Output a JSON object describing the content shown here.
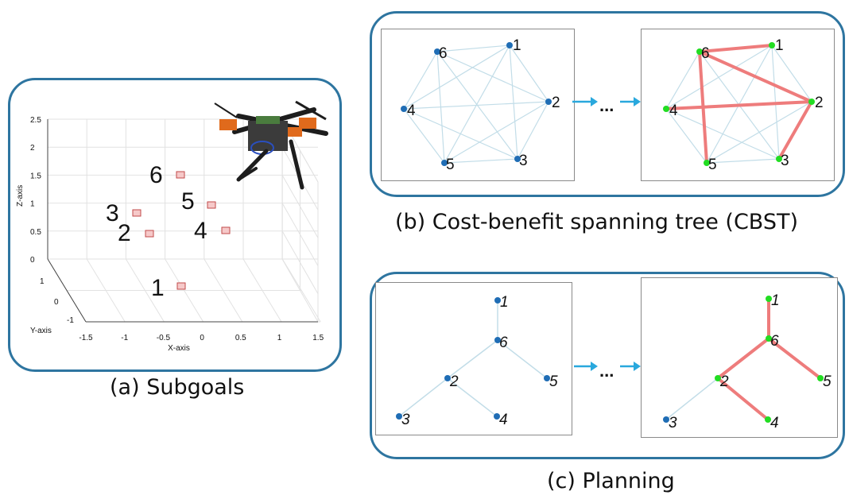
{
  "panel_a": {
    "caption": "(a) Subgoals",
    "axes": {
      "x_label": "X-axis",
      "y_label": "Y-axis",
      "z_label": "Z-axis",
      "x_ticks": [
        "-1.5",
        "-1",
        "-0.5",
        "0",
        "0.5",
        "1",
        "1.5"
      ],
      "y_ticks": [
        "1",
        "0",
        "-1"
      ],
      "z_ticks": [
        "0",
        "0.5",
        "1",
        "1.5",
        "2",
        "2.5"
      ]
    },
    "subgoals": [
      {
        "label": "1"
      },
      {
        "label": "2"
      },
      {
        "label": "3"
      },
      {
        "label": "4"
      },
      {
        "label": "5"
      },
      {
        "label": "6"
      }
    ]
  },
  "panel_b": {
    "caption": "(b) Cost-benefit spanning tree (CBST)",
    "ellipsis": "...",
    "nodes": [
      "1",
      "2",
      "3",
      "4",
      "5",
      "6"
    ],
    "tree_edges": [
      [
        "6",
        "1"
      ],
      [
        "6",
        "2"
      ],
      [
        "6",
        "5"
      ],
      [
        "4",
        "2"
      ],
      [
        "2",
        "3"
      ]
    ],
    "node_color": "#1f6db5",
    "highlight_node_color": "#22dd22",
    "edge_color": "#c2dde8",
    "highlight_edge_color": "#ee7c7c"
  },
  "panel_c": {
    "caption": "(c) Planning",
    "ellipsis": "...",
    "nodes": [
      "1",
      "2",
      "3",
      "4",
      "5",
      "6"
    ],
    "tree_edges": [
      [
        "1",
        "6"
      ],
      [
        "6",
        "2"
      ],
      [
        "6",
        "5"
      ],
      [
        "2",
        "3"
      ],
      [
        "2",
        "4"
      ]
    ],
    "plan_edges": [
      [
        "1",
        "6"
      ],
      [
        "6",
        "2"
      ],
      [
        "6",
        "5"
      ],
      [
        "2",
        "4"
      ]
    ]
  },
  "colors": {
    "box_border": "#2e75a0",
    "arrow": "#29a8dd"
  }
}
